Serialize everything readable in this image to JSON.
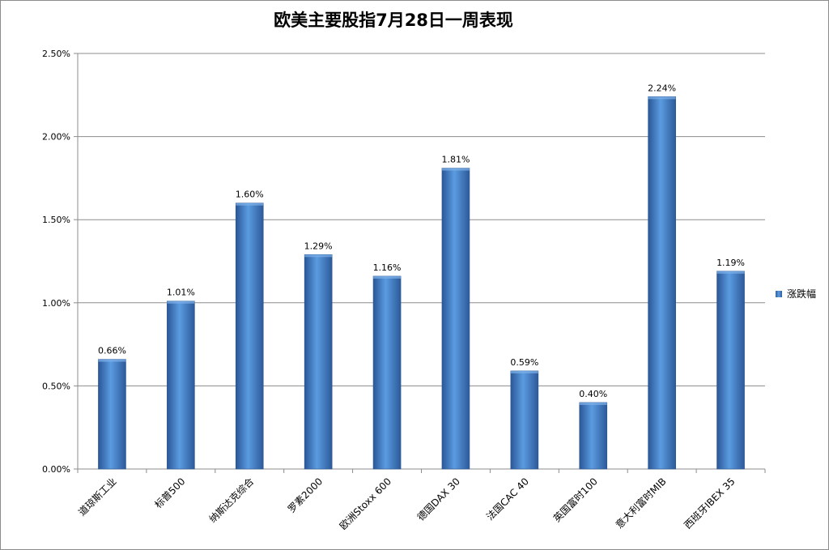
{
  "chart_data": {
    "type": "bar",
    "title": "欧美主要股指7月28日一周表现",
    "categories": [
      "道琼斯工业",
      "标普500",
      "纳斯达克综合",
      "罗素2000",
      "欧洲Stoxx 600",
      "德国DAX 30",
      "法国CAC 40",
      "英国富时100",
      "意大利富时MIB",
      "西班牙IBEX 35"
    ],
    "series": [
      {
        "name": "涨跌幅",
        "values": [
          0.66,
          1.01,
          1.6,
          1.29,
          1.16,
          1.81,
          0.59,
          0.4,
          2.24,
          1.19
        ],
        "data_labels": [
          "0.66%",
          "1.01%",
          "1.60%",
          "1.29%",
          "1.16%",
          "1.81%",
          "0.59%",
          "0.40%",
          "2.24%",
          "1.19%"
        ]
      }
    ],
    "ylim": [
      0,
      2.5
    ],
    "yticks": [
      "0.00%",
      "0.50%",
      "1.00%",
      "1.50%",
      "2.00%",
      "2.50%"
    ],
    "ylabel": "",
    "xlabel": "",
    "grid": true,
    "legend_position": "right",
    "bar_color": "#3d7cc9"
  }
}
